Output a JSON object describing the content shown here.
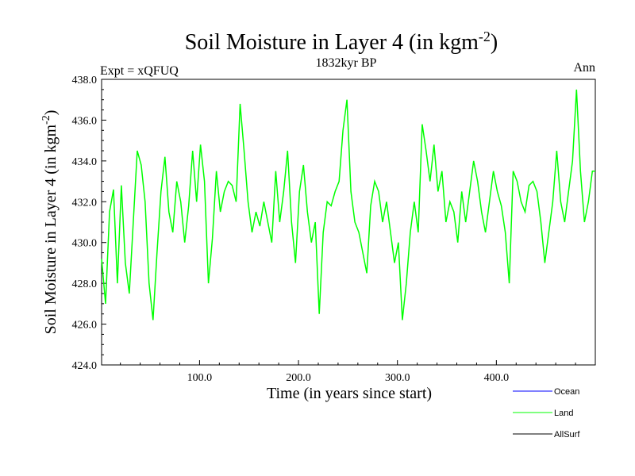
{
  "chart_data": {
    "type": "line",
    "title": "Soil Moisture in Layer 4 (in kgm",
    "title_exponent": "-2",
    "title_close": ")",
    "subtitle": "1832kyr BP",
    "left_label": "Expt = xQFUQ",
    "right_label": "Ann",
    "xlabel": "Time (in years since start)",
    "ylabel": "Soil Moisture in Layer 4 (in kgm",
    "ylabel_exponent": "-2",
    "ylabel_close": ")",
    "xlim": [
      1,
      500
    ],
    "ylim": [
      424.0,
      438.0
    ],
    "xticks": [
      100,
      200,
      300,
      400
    ],
    "xtick_labels": [
      "100.0",
      "200.0",
      "300.0",
      "400.0"
    ],
    "yticks": [
      424,
      426,
      428,
      430,
      432,
      434,
      436,
      438
    ],
    "ytick_labels": [
      "424.0",
      "426.0",
      "428.0",
      "430.0",
      "432.0",
      "434.0",
      "436.0",
      "438.0"
    ],
    "legend": [
      {
        "name": "Ocean",
        "color": "#0000ff"
      },
      {
        "name": "Land",
        "color": "#00ff00"
      },
      {
        "name": "AllSurf",
        "color": "#000000"
      }
    ],
    "series": [
      {
        "name": "Land",
        "color": "#00ff00",
        "x": [
          1,
          5,
          9,
          13,
          17,
          21,
          25,
          29,
          33,
          37,
          41,
          45,
          49,
          53,
          57,
          61,
          65,
          69,
          73,
          77,
          81,
          85,
          89,
          93,
          97,
          101,
          105,
          109,
          113,
          117,
          121,
          125,
          129,
          133,
          137,
          141,
          145,
          149,
          153,
          157,
          161,
          165,
          169,
          173,
          177,
          181,
          185,
          189,
          193,
          197,
          201,
          205,
          209,
          213,
          217,
          221,
          225,
          229,
          233,
          237,
          241,
          245,
          249,
          253,
          257,
          261,
          265,
          269,
          273,
          277,
          281,
          285,
          289,
          293,
          297,
          301,
          305,
          309,
          313,
          317,
          321,
          325,
          329,
          333,
          337,
          341,
          345,
          349,
          353,
          357,
          361,
          365,
          369,
          373,
          377,
          381,
          385,
          389,
          393,
          397,
          401,
          405,
          409,
          413,
          417,
          421,
          425,
          429,
          433,
          437,
          441,
          445,
          449,
          453,
          457,
          461,
          465,
          469,
          473,
          477,
          481,
          485,
          489,
          493,
          497,
          500
        ],
        "values": [
          429.2,
          427.0,
          431.5,
          432.6,
          428.0,
          432.8,
          429.0,
          427.5,
          431.0,
          434.5,
          433.8,
          432.0,
          428.0,
          426.2,
          429.5,
          432.5,
          434.2,
          431.5,
          430.5,
          433.0,
          432.0,
          430.0,
          431.8,
          434.5,
          432.0,
          434.8,
          433.0,
          428.0,
          430.2,
          433.5,
          431.5,
          432.5,
          433.0,
          432.8,
          432.0,
          436.8,
          434.5,
          432.0,
          430.5,
          431.5,
          430.8,
          432.0,
          431.0,
          430.0,
          433.5,
          431.0,
          432.5,
          434.5,
          431.0,
          429.0,
          432.5,
          433.8,
          431.5,
          430.0,
          431.0,
          426.5,
          430.5,
          432.0,
          431.8,
          432.5,
          433.0,
          435.5,
          437.0,
          432.5,
          431.0,
          430.5,
          429.5,
          428.5,
          431.8,
          433.0,
          432.5,
          431.0,
          432.0,
          430.5,
          429.0,
          430.0,
          426.2,
          428.0,
          430.5,
          432.0,
          430.5,
          435.8,
          434.5,
          433.0,
          434.8,
          432.5,
          433.5,
          431.0,
          432.0,
          431.5,
          430.0,
          432.5,
          431.0,
          432.5,
          434.0,
          433.0,
          431.5,
          430.5,
          432.0,
          433.5,
          432.5,
          431.8,
          430.5,
          428.0,
          433.5,
          433.0,
          432.0,
          431.5,
          432.8,
          433.0,
          432.5,
          431.0,
          429.0,
          430.5,
          432.0,
          434.5,
          432.0,
          431.0,
          432.5,
          434.0,
          437.5,
          433.5,
          431.0,
          432.0,
          433.5,
          433.5
        ]
      }
    ]
  }
}
